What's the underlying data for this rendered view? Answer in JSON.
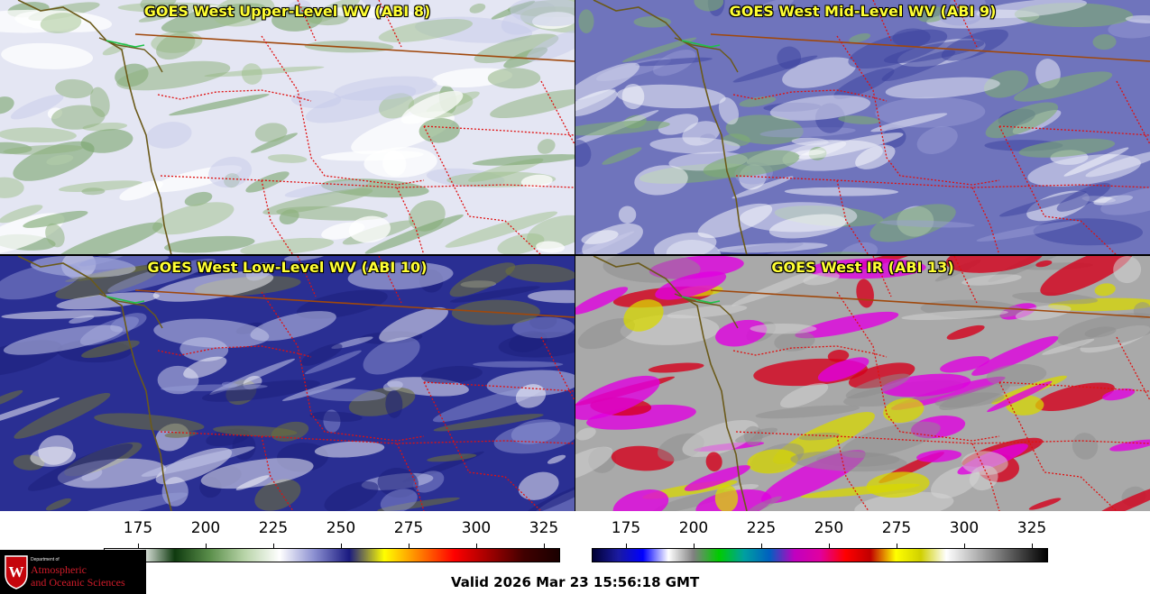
{
  "panels": [
    {
      "id": "upper",
      "title": "GOES West Upper-Level WV (ABI 8)",
      "base": "#e4e6f3",
      "blobs": [
        [
          "#8fb37f",
          0.55
        ],
        [
          "#9dbf8a",
          0.5
        ],
        [
          "#7aa56c",
          0.6
        ],
        [
          "#ffffff",
          0.75
        ],
        [
          "#c6c9ea",
          0.5
        ]
      ]
    },
    {
      "id": "mid",
      "title": "GOES West Mid-Level WV (ABI 9)",
      "base": "#6f74bc",
      "blobs": [
        [
          "#e8e9f6",
          0.55
        ],
        [
          "#ffffff",
          0.5
        ],
        [
          "#9ba0d6",
          0.45
        ],
        [
          "#7fae72",
          0.6
        ],
        [
          "#3a3f9e",
          0.5
        ]
      ]
    },
    {
      "id": "low",
      "title": "GOES West Low-Level WV (ABI 10)",
      "base": "#2a2f93",
      "blobs": [
        [
          "#ffffff",
          0.5
        ],
        [
          "#c5c8ea",
          0.55
        ],
        [
          "#6c6f3b",
          0.6
        ],
        [
          "#9aa0da",
          0.45
        ],
        [
          "#1c1f7c",
          0.55
        ]
      ]
    },
    {
      "id": "ir",
      "title": "GOES West IR (ABI 13)",
      "base": "#a9a9a9",
      "blobs": [
        [
          "#d4d4d4",
          0.55
        ],
        [
          "#8e8e8e",
          0.5
        ],
        [
          "#d8d800",
          0.75
        ],
        [
          "#d4001c",
          0.8
        ],
        [
          "#e000e0",
          0.8
        ]
      ]
    }
  ],
  "colorbars": [
    {
      "id": "wv",
      "ticks": [
        "175",
        "200",
        "225",
        "250",
        "275",
        "300",
        "325"
      ],
      "stops": [
        "#ffffff",
        "#ffffff",
        "#0f3a0f",
        "#5a8e4a",
        "#b8d4a8",
        "#ffffff",
        "#8a8ed0",
        "#1a1a80",
        "#ffff00",
        "#ff8000",
        "#ff0000",
        "#a00000",
        "#400000",
        "#1a0000"
      ]
    },
    {
      "id": "ir",
      "ticks": [
        "175",
        "200",
        "225",
        "250",
        "275",
        "300",
        "325"
      ],
      "stops": [
        "#000033",
        "#1a1aa0",
        "#0000ff",
        "#ffffff",
        "#808080",
        "#00cc00",
        "#00a0a0",
        "#0060c0",
        "#c000c0",
        "#e000a0",
        "#ff0000",
        "#c00000",
        "#ffff00",
        "#d0d000",
        "#ffffff",
        "#c0c0c0",
        "#808080",
        "#404040",
        "#000000"
      ]
    }
  ],
  "logo": {
    "small": "Department of",
    "line1": "Atmospheric",
    "line2": "and Oceanic Sciences",
    "seal_letter": "W"
  },
  "valid_text": "Valid 2026 Mar 23 15:56:18 GMT"
}
